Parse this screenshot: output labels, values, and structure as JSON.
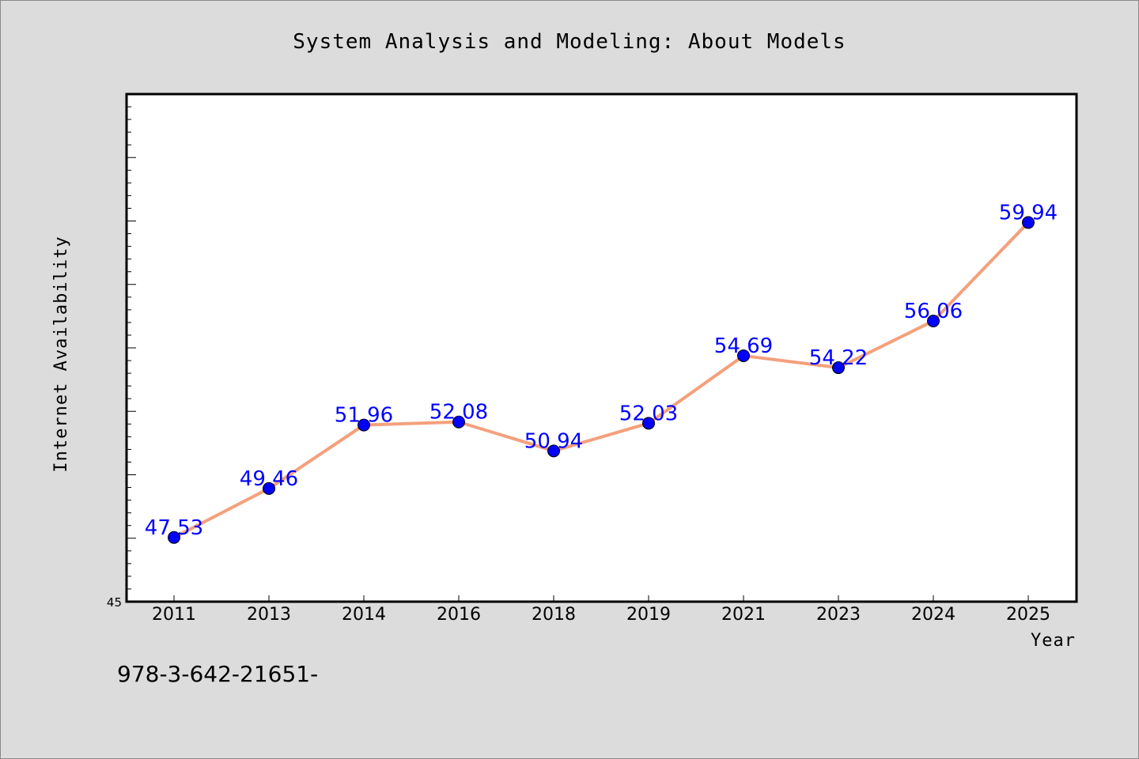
{
  "chart_data": {
    "type": "line",
    "title": "System Analysis and Modeling: About Models",
    "xlabel": "Year",
    "ylabel": "Internet Availability",
    "categories": [
      "2011",
      "2013",
      "2014",
      "2016",
      "2018",
      "2019",
      "2021",
      "2023",
      "2024",
      "2025"
    ],
    "series": [
      {
        "values": [
          47.53,
          49.46,
          51.96,
          52.08,
          50.94,
          52.03,
          54.69,
          54.22,
          56.06,
          59.94
        ],
        "line_color": "#f4a07c",
        "marker_color": "#0000ff"
      }
    ],
    "ylim": [
      45,
      65
    ],
    "yticks_labeled": [
      "45"
    ],
    "data_labels": [
      "47.53",
      "49.46",
      "51.96",
      "52.08",
      "50.94",
      "52.03",
      "54.69",
      "54.22",
      "56.06",
      "59.94"
    ],
    "grid": false,
    "legend": "none"
  },
  "footnote": "978-3-642-21651-"
}
